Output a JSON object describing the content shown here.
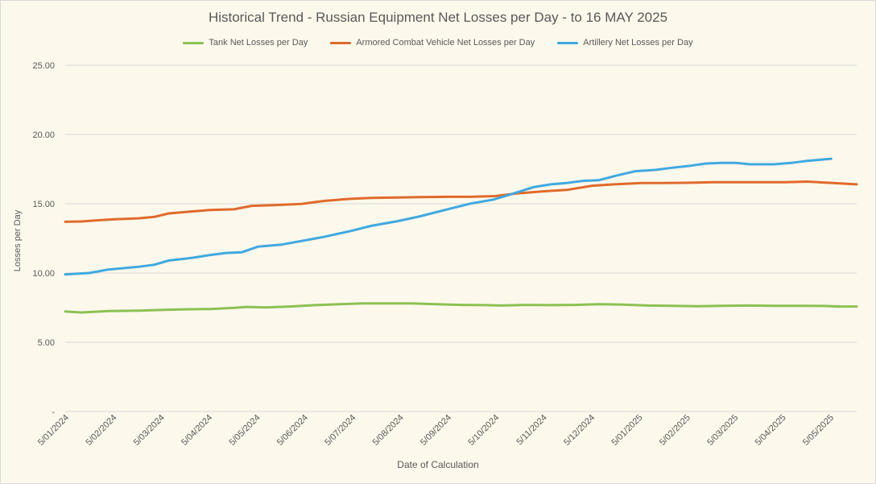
{
  "chart_data": {
    "type": "line",
    "title": "Historical Trend - Russian Equipment Net Losses per Day - to 16 MAY 2025",
    "xlabel": "Date of Calculation",
    "ylabel": "Losses per Day",
    "ylim": [
      0,
      25
    ],
    "y_ticks": [
      "-",
      "5.00",
      "10.00",
      "15.00",
      "20.00",
      "25.00"
    ],
    "grid": "horizontal",
    "legend_position": "top",
    "x_tick_labels": [
      "5/01/2024",
      "5/02/2024",
      "5/03/2024",
      "5/04/2024",
      "5/05/2024",
      "5/06/2024",
      "5/07/2024",
      "5/08/2024",
      "5/09/2024",
      "5/10/2024",
      "5/11/2024",
      "5/12/2024",
      "5/01/2025",
      "5/02/2025",
      "5/03/2025",
      "5/04/2025",
      "5/05/2025"
    ],
    "x_start": "2024-01-05",
    "x_end": "2025-05-16",
    "series": [
      {
        "name": "Tank Net Losses per Day",
        "color": "#8cc152",
        "points": [
          [
            "2024-01-05",
            7.22
          ],
          [
            "2024-01-15",
            7.15
          ],
          [
            "2024-02-01",
            7.25
          ],
          [
            "2024-02-20",
            7.28
          ],
          [
            "2024-03-05",
            7.33
          ],
          [
            "2024-03-20",
            7.38
          ],
          [
            "2024-04-05",
            7.4
          ],
          [
            "2024-04-20",
            7.48
          ],
          [
            "2024-04-28",
            7.55
          ],
          [
            "2024-05-10",
            7.52
          ],
          [
            "2024-05-25",
            7.58
          ],
          [
            "2024-06-10",
            7.68
          ],
          [
            "2024-06-25",
            7.75
          ],
          [
            "2024-07-10",
            7.8
          ],
          [
            "2024-07-25",
            7.8
          ],
          [
            "2024-08-10",
            7.8
          ],
          [
            "2024-08-25",
            7.75
          ],
          [
            "2024-09-10",
            7.7
          ],
          [
            "2024-09-25",
            7.68
          ],
          [
            "2024-10-05",
            7.65
          ],
          [
            "2024-10-20",
            7.7
          ],
          [
            "2024-11-05",
            7.68
          ],
          [
            "2024-11-20",
            7.7
          ],
          [
            "2024-12-05",
            7.75
          ],
          [
            "2024-12-20",
            7.72
          ],
          [
            "2025-01-05",
            7.65
          ],
          [
            "2025-01-20",
            7.63
          ],
          [
            "2025-02-05",
            7.6
          ],
          [
            "2025-02-20",
            7.63
          ],
          [
            "2025-03-10",
            7.65
          ],
          [
            "2025-03-25",
            7.63
          ],
          [
            "2025-04-10",
            7.63
          ],
          [
            "2025-04-25",
            7.62
          ],
          [
            "2025-05-05",
            7.58
          ],
          [
            "2025-05-16",
            7.58
          ]
        ]
      },
      {
        "name": "Armored Combat Vehicle Net Losses per Day",
        "color": "#e06a2b",
        "points": [
          [
            "2024-01-05",
            13.7
          ],
          [
            "2024-01-15",
            13.72
          ],
          [
            "2024-01-25",
            13.8
          ],
          [
            "2024-02-05",
            13.88
          ],
          [
            "2024-02-20",
            13.95
          ],
          [
            "2024-03-01",
            14.05
          ],
          [
            "2024-03-10",
            14.3
          ],
          [
            "2024-03-25",
            14.45
          ],
          [
            "2024-04-05",
            14.55
          ],
          [
            "2024-04-20",
            14.6
          ],
          [
            "2024-05-01",
            14.85
          ],
          [
            "2024-05-15",
            14.9
          ],
          [
            "2024-06-01",
            14.98
          ],
          [
            "2024-06-15",
            15.2
          ],
          [
            "2024-07-01",
            15.35
          ],
          [
            "2024-07-15",
            15.42
          ],
          [
            "2024-08-01",
            15.45
          ],
          [
            "2024-08-15",
            15.48
          ],
          [
            "2024-09-01",
            15.5
          ],
          [
            "2024-09-15",
            15.5
          ],
          [
            "2024-10-01",
            15.55
          ],
          [
            "2024-10-15",
            15.75
          ],
          [
            "2024-11-01",
            15.9
          ],
          [
            "2024-11-15",
            16.0
          ],
          [
            "2024-12-01",
            16.3
          ],
          [
            "2024-12-15",
            16.4
          ],
          [
            "2025-01-01",
            16.5
          ],
          [
            "2025-01-15",
            16.5
          ],
          [
            "2025-02-01",
            16.52
          ],
          [
            "2025-02-15",
            16.55
          ],
          [
            "2025-03-01",
            16.55
          ],
          [
            "2025-03-15",
            16.55
          ],
          [
            "2025-04-01",
            16.55
          ],
          [
            "2025-04-15",
            16.6
          ],
          [
            "2025-05-01",
            16.5
          ],
          [
            "2025-05-16",
            16.4
          ]
        ]
      },
      {
        "name": "Artillery Net Losses per Day",
        "color": "#3fa9e0",
        "points": [
          [
            "2024-01-05",
            9.9
          ],
          [
            "2024-01-20",
            10.0
          ],
          [
            "2024-02-01",
            10.25
          ],
          [
            "2024-02-20",
            10.45
          ],
          [
            "2024-03-01",
            10.6
          ],
          [
            "2024-03-10",
            10.9
          ],
          [
            "2024-03-25",
            11.1
          ],
          [
            "2024-04-05",
            11.3
          ],
          [
            "2024-04-15",
            11.45
          ],
          [
            "2024-04-25",
            11.5
          ],
          [
            "2024-05-05",
            11.9
          ],
          [
            "2024-05-20",
            12.05
          ],
          [
            "2024-06-01",
            12.3
          ],
          [
            "2024-06-15",
            12.6
          ],
          [
            "2024-07-01",
            13.0
          ],
          [
            "2024-07-15",
            13.4
          ],
          [
            "2024-08-01",
            13.75
          ],
          [
            "2024-08-15",
            14.1
          ],
          [
            "2024-09-01",
            14.6
          ],
          [
            "2024-09-15",
            15.0
          ],
          [
            "2024-09-30",
            15.3
          ],
          [
            "2024-10-10",
            15.65
          ],
          [
            "2024-10-25",
            16.2
          ],
          [
            "2024-11-05",
            16.4
          ],
          [
            "2024-11-15",
            16.5
          ],
          [
            "2024-11-25",
            16.65
          ],
          [
            "2024-12-05",
            16.7
          ],
          [
            "2024-12-15",
            17.0
          ],
          [
            "2024-12-28",
            17.35
          ],
          [
            "2025-01-10",
            17.45
          ],
          [
            "2025-01-20",
            17.6
          ],
          [
            "2025-02-01",
            17.75
          ],
          [
            "2025-02-10",
            17.9
          ],
          [
            "2025-02-20",
            17.95
          ],
          [
            "2025-03-01",
            17.95
          ],
          [
            "2025-03-10",
            17.85
          ],
          [
            "2025-03-25",
            17.85
          ],
          [
            "2025-04-05",
            17.95
          ],
          [
            "2025-04-15",
            18.1
          ],
          [
            "2025-04-25",
            18.2
          ],
          [
            "2025-04-30",
            18.25
          ]
        ]
      }
    ]
  }
}
